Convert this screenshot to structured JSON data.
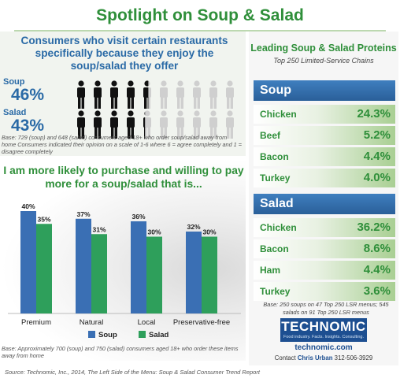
{
  "title": "Spotlight on Soup & Salad",
  "top_question": "Consumers who visit certain restaurants specifically because they enjoy the soup/salad they offer",
  "stats": [
    {
      "label": "Soup",
      "value": "46%",
      "filled_of_10": 4.6
    },
    {
      "label": "Salad",
      "value": "43%",
      "filled_of_10": 4.3
    }
  ],
  "top_base": "Base: 729 (soup) and 648 (salad) consumers aged 18+ who order soup/salad away from home Consumers indicated their opinion on a scale of 1-6 where 6 = agree completely and 1 = disagree completely",
  "bottom_question": "I am more likely to purchase and willing to pay more for a soup/salad that is...",
  "bottom_base": "Base: Approximately 700 (soup) and 750 (salad) consumers aged 18+ who order these items away from home",
  "source": "Source: Technomic, Inc., 2014, The Left Side of the Menu: Soup & Salad Consumer Trend Report",
  "colors": {
    "soup": "#3a6fb4",
    "salad": "#2e9f5b",
    "green": "#2f8f3a",
    "blue": "#2a6aa6"
  },
  "chart_data": {
    "type": "bar",
    "title": "I am more likely to purchase and willing to pay more for a soup/salad that is...",
    "categories": [
      "Premium",
      "Natural",
      "Local",
      "Preservative-free"
    ],
    "series": [
      {
        "name": "Soup",
        "values": [
          40,
          37,
          36,
          32
        ],
        "labels": [
          "40%",
          "37%",
          "36%",
          "32%"
        ]
      },
      {
        "name": "Salad",
        "values": [
          35,
          31,
          30,
          30
        ],
        "labels": [
          "35%",
          "31%",
          "30%",
          "30%"
        ]
      }
    ],
    "ylim": [
      0,
      45
    ],
    "legend": "bottom",
    "grid": false
  },
  "proteins": {
    "title": "Leading Soup & Salad Proteins",
    "subtitle": "Top 250 Limited-Service Chains",
    "soup_head": "Soup",
    "soup": [
      {
        "name": "Chicken",
        "value": "24.3%"
      },
      {
        "name": "Beef",
        "value": "5.2%"
      },
      {
        "name": "Bacon",
        "value": "4.4%"
      },
      {
        "name": "Turkey",
        "value": "4.0%"
      }
    ],
    "salad_head": "Salad",
    "salad": [
      {
        "name": "Chicken",
        "value": "36.2%"
      },
      {
        "name": "Bacon",
        "value": "8.6%"
      },
      {
        "name": "Ham",
        "value": "4.4%"
      },
      {
        "name": "Turkey",
        "value": "3.6%"
      }
    ],
    "base": "Base: 250 soups on 47 Top 250 LSR menus; 545 salads on 91 Top 250 LSR menus"
  },
  "brand": {
    "logo": "TECHNOMIC",
    "tagline": "Food industry. Facts. Insights. Consulting.",
    "site": "technomic.com",
    "contact_prefix": "Contact",
    "contact_name": "Chris Urban",
    "contact_phone": "312-506-3929"
  }
}
